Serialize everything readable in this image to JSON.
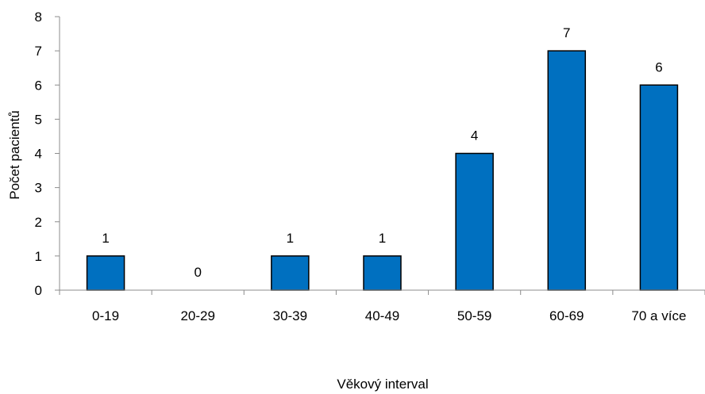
{
  "chart_data": {
    "type": "bar",
    "title": "",
    "xlabel": "Věkový interval",
    "ylabel": "Počet pacientů",
    "categories": [
      "0-19",
      "20-29",
      "30-39",
      "40-49",
      "50-59",
      "60-69",
      "70 a více"
    ],
    "values": [
      1,
      0,
      1,
      1,
      4,
      7,
      6
    ],
    "data_labels": [
      "1",
      "0",
      "1",
      "1",
      "4",
      "7",
      "6"
    ],
    "ylim": [
      0,
      8
    ],
    "yticks": [
      0,
      1,
      2,
      3,
      4,
      5,
      6,
      7,
      8
    ],
    "grid": false,
    "legend": "none",
    "bar_color": "#0070C0",
    "bar_edge_color": "#000000"
  }
}
